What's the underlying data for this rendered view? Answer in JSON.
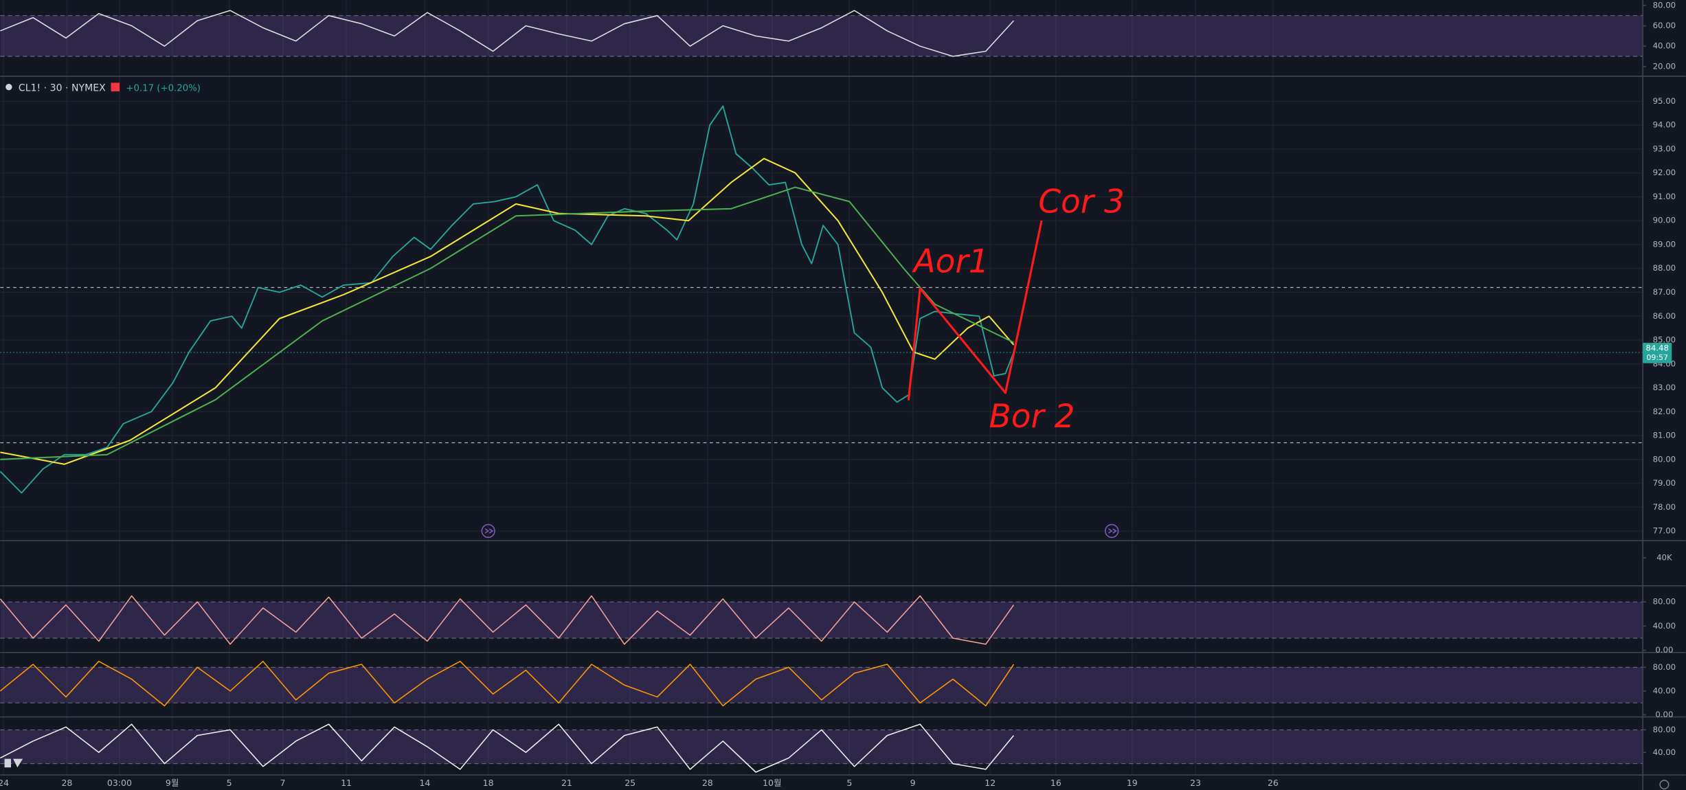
{
  "chart_data": [
    {
      "type": "line",
      "xlim": [
        0,
        100
      ],
      "ylim": [
        10.4,
        85.3
      ],
      "yticks": [
        {
          "value": 20,
          "label": "20.00"
        },
        {
          "value": 40,
          "label": "40.00"
        },
        {
          "value": 60,
          "label": "60.00"
        },
        {
          "value": 80,
          "label": "80.00"
        }
      ],
      "band": [
        30,
        70
      ],
      "color": "#e0e0e0",
      "x": [
        0,
        2,
        4,
        6,
        8,
        10,
        12,
        14,
        16,
        18,
        20,
        22,
        24,
        26,
        28,
        30,
        32,
        34,
        36,
        38,
        40,
        42,
        44,
        46,
        48,
        50,
        52,
        54,
        56,
        58,
        60,
        61.7
      ],
      "values": [
        55,
        68,
        48,
        72,
        60,
        40,
        65,
        75,
        58,
        45,
        70,
        62,
        50,
        73,
        55,
        35,
        60,
        52,
        45,
        62,
        70,
        40,
        60,
        50,
        45,
        58,
        75,
        55,
        40,
        30,
        35,
        65
      ]
    },
    {
      "type": "line",
      "symbol": "CL1! · 30 · NYMEX",
      "change": "+0.17 (+0.20%)",
      "last_price": 84.48,
      "countdown": "09:57",
      "xlim": [
        0,
        100
      ],
      "ylim": [
        76.6,
        96.0
      ],
      "grid": true,
      "yticks": [
        {
          "value": 77,
          "label": "77.00"
        },
        {
          "value": 78,
          "label": "78.00"
        },
        {
          "value": 79,
          "label": "79.00"
        },
        {
          "value": 80,
          "label": "80.00"
        },
        {
          "value": 81,
          "label": "81.00"
        },
        {
          "value": 82,
          "label": "82.00"
        },
        {
          "value": 83,
          "label": "83.00"
        },
        {
          "value": 84,
          "label": "84.00"
        },
        {
          "value": 85,
          "label": "85.00"
        },
        {
          "value": 86,
          "label": "86.00"
        },
        {
          "value": 87,
          "label": "87.00"
        },
        {
          "value": 88,
          "label": "88.00"
        },
        {
          "value": 89,
          "label": "89.00"
        },
        {
          "value": 90,
          "label": "90.00"
        },
        {
          "value": 91,
          "label": "91.00"
        },
        {
          "value": 92,
          "label": "92.00"
        },
        {
          "value": 93,
          "label": "93.00"
        },
        {
          "value": 94,
          "label": "94.00"
        },
        {
          "value": 95,
          "label": "95.00"
        }
      ],
      "xticks": [
        {
          "value": 0.2,
          "label": "24"
        },
        {
          "value": 4.06,
          "label": "28"
        },
        {
          "value": 7.26,
          "label": "03:00"
        },
        {
          "value": 10.47,
          "label": "9월"
        },
        {
          "value": 13.94,
          "label": "5"
        },
        {
          "value": 17.2,
          "label": "7"
        },
        {
          "value": 21.07,
          "label": "11"
        },
        {
          "value": 25.85,
          "label": "14"
        },
        {
          "value": 29.71,
          "label": "18"
        },
        {
          "value": 34.49,
          "label": "21"
        },
        {
          "value": 38.35,
          "label": "25"
        },
        {
          "value": 43.06,
          "label": "28"
        },
        {
          "value": 46.99,
          "label": "10월"
        },
        {
          "value": 51.7,
          "label": "5"
        },
        {
          "value": 55.56,
          "label": "9"
        },
        {
          "value": 60.27,
          "label": "12"
        },
        {
          "value": 64.27,
          "label": "16"
        },
        {
          "value": 68.91,
          "label": "19"
        },
        {
          "value": 72.77,
          "label": "23"
        },
        {
          "value": 77.49,
          "label": "26"
        }
      ],
      "hlines": [
        87.2,
        80.7
      ],
      "series": [
        {
          "color": "#26a69a",
          "x": [
            0,
            1.3,
            2.6,
            3.9,
            5.2,
            6.5,
            7.5,
            9.2,
            10.5,
            11.5,
            12.8,
            14.1,
            14.7,
            15.7,
            17.0,
            18.3,
            19.6,
            20.9,
            22.6,
            23.9,
            25.2,
            26.2,
            27.5,
            28.8,
            30.1,
            31.4,
            32.7,
            33.7,
            35.0,
            36.0,
            37.0,
            38.0,
            39.3,
            40.6,
            41.2,
            42.2,
            43.2,
            44.0,
            44.8,
            45.8,
            46.8,
            47.8,
            48.8,
            49.4,
            50.1,
            51.0,
            52.0,
            53.0,
            53.7,
            54.6,
            55.3,
            56.0,
            56.9,
            58.2,
            59.6,
            60.5,
            61.2,
            61.7
          ],
          "values": [
            79.5,
            78.6,
            79.6,
            80.2,
            80.2,
            80.5,
            81.5,
            82.0,
            83.2,
            84.5,
            85.8,
            86.0,
            85.5,
            87.2,
            87.0,
            87.3,
            86.8,
            87.3,
            87.4,
            88.5,
            89.3,
            88.8,
            89.8,
            90.7,
            90.8,
            91.0,
            91.5,
            90.0,
            89.6,
            89.0,
            90.2,
            90.5,
            90.3,
            89.6,
            89.2,
            90.7,
            94.0,
            94.8,
            92.8,
            92.2,
            91.5,
            91.6,
            89.0,
            88.2,
            89.8,
            89.0,
            85.3,
            84.7,
            83.0,
            82.4,
            82.7,
            85.9,
            86.2,
            86.1,
            86.0,
            83.5,
            83.6,
            84.48
          ]
        },
        {
          "color": "#f5e63c",
          "x": [
            0,
            3.9,
            7.9,
            13.1,
            17.0,
            20.9,
            26.2,
            31.4,
            34.0,
            39.3,
            41.9,
            44.5,
            46.5,
            48.4,
            51.0,
            53.7,
            55.6,
            56.9,
            58.9,
            60.2,
            61.7
          ],
          "values": [
            80.3,
            79.8,
            80.8,
            83.0,
            85.9,
            86.9,
            88.5,
            90.7,
            90.3,
            90.2,
            90.0,
            91.6,
            92.6,
            92.0,
            90.0,
            87.0,
            84.5,
            84.2,
            85.5,
            86.0,
            84.8
          ]
        },
        {
          "color": "#4caf50",
          "x": [
            0,
            6.5,
            13.1,
            19.6,
            26.2,
            31.4,
            39.3,
            44.5,
            48.4,
            51.7,
            55.0,
            56.9,
            61.7
          ],
          "values": [
            80.0,
            80.2,
            82.5,
            85.8,
            88.0,
            90.2,
            90.4,
            90.5,
            91.4,
            90.8,
            88.0,
            86.5,
            84.9
          ]
        }
      ],
      "drawing": {
        "color": "#ff1a1a",
        "x": [
          55.3,
          56.0,
          61.2,
          63.4
        ],
        "values": [
          82.48,
          87.16,
          82.79,
          90.0
        ]
      },
      "annotations": [
        {
          "text": "Aor1",
          "x": 55.6,
          "y": 88.2
        },
        {
          "text": "Bor 2",
          "x": 60.2,
          "y": 81.7
        },
        {
          "text": "Cor 3",
          "x": 63.2,
          "y": 90.7
        }
      ]
    },
    {
      "type": "volume",
      "xlim": [
        0,
        100
      ],
      "ylim": [
        0,
        64600
      ],
      "yticks": [
        {
          "value": 40000,
          "label": "40K"
        }
      ]
    },
    {
      "type": "line",
      "xlim": [
        0,
        100
      ],
      "ylim": [
        -3.6,
        106.7
      ],
      "yticks": [
        {
          "value": 0,
          "label": "0.00"
        },
        {
          "value": 40,
          "label": "40.00"
        },
        {
          "value": 80,
          "label": "80.00"
        }
      ],
      "band": [
        20,
        80
      ],
      "color": "#f4a09a",
      "x": [
        0,
        2,
        4,
        6,
        8,
        10,
        12,
        14,
        16,
        18,
        20,
        22,
        24,
        26,
        28,
        30,
        32,
        34,
        36,
        38,
        40,
        42,
        44,
        46,
        48,
        50,
        52,
        54,
        56,
        58,
        60,
        61.7
      ],
      "values": [
        85,
        20,
        75,
        15,
        90,
        25,
        80,
        10,
        70,
        30,
        88,
        20,
        60,
        15,
        85,
        30,
        75,
        20,
        90,
        10,
        65,
        25,
        85,
        20,
        70,
        15,
        80,
        30,
        90,
        20,
        10,
        75
      ]
    },
    {
      "type": "line",
      "xlim": [
        0,
        100
      ],
      "ylim": [
        -3.6,
        105
      ],
      "yticks": [
        {
          "value": 0,
          "label": "0.00"
        },
        {
          "value": 40,
          "label": "40.00"
        },
        {
          "value": 80,
          "label": "80.00"
        }
      ],
      "band": [
        20,
        80
      ],
      "color": "#ff9800",
      "x": [
        0,
        2,
        4,
        6,
        8,
        10,
        12,
        14,
        16,
        18,
        20,
        22,
        24,
        26,
        28,
        30,
        32,
        34,
        36,
        38,
        40,
        42,
        44,
        46,
        48,
        50,
        52,
        54,
        56,
        58,
        60,
        61.7
      ],
      "values": [
        40,
        85,
        30,
        90,
        60,
        15,
        80,
        40,
        90,
        25,
        70,
        85,
        20,
        60,
        90,
        35,
        75,
        20,
        85,
        50,
        30,
        85,
        15,
        60,
        80,
        25,
        70,
        85,
        20,
        60,
        15,
        85
      ]
    },
    {
      "type": "line",
      "xlim": [
        0,
        100
      ],
      "ylim": [
        0,
        102.9
      ],
      "yticks": [
        {
          "value": 40,
          "label": "40.00"
        },
        {
          "value": 80,
          "label": "80.00"
        }
      ],
      "band": [
        20,
        80
      ],
      "color": "#f0f0f0",
      "x": [
        0,
        2,
        4,
        6,
        8,
        10,
        12,
        14,
        16,
        18,
        20,
        22,
        24,
        26,
        28,
        30,
        32,
        34,
        36,
        38,
        40,
        42,
        44,
        46,
        48,
        50,
        52,
        54,
        56,
        58,
        60,
        61.7
      ],
      "values": [
        30,
        60,
        85,
        40,
        90,
        20,
        70,
        80,
        15,
        60,
        90,
        25,
        85,
        50,
        10,
        80,
        40,
        90,
        20,
        70,
        85,
        10,
        60,
        5,
        30,
        80,
        15,
        70,
        90,
        20,
        10,
        70
      ]
    }
  ]
}
